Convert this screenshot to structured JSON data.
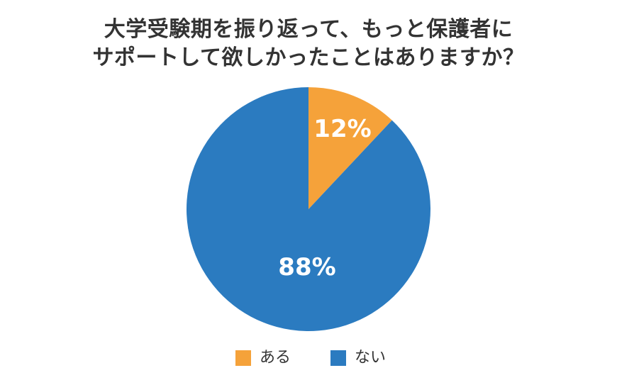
{
  "chart_data": {
    "type": "pie",
    "title_lines": [
      "大学受験期を振り返って、もっと保護者に",
      "サポートして欲しかったことはありますか？"
    ],
    "categories": [
      "ある",
      "ない"
    ],
    "values": [
      12,
      88
    ],
    "value_labels": [
      "12%",
      "88%"
    ],
    "colors": [
      "#F5A23A",
      "#2B7BC0"
    ],
    "legend_placement": "bottom"
  }
}
